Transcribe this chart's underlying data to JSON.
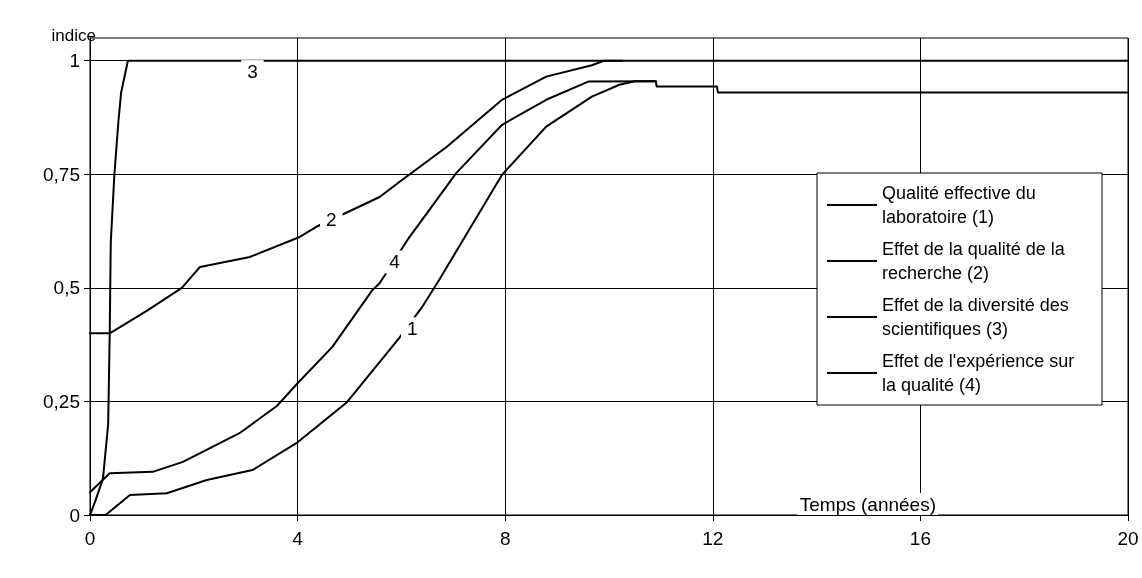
{
  "chart_data": {
    "type": "line",
    "xlabel": "Temps (années)",
    "ylabel": "indice",
    "xlim": [
      0,
      20
    ],
    "xticks": [
      0,
      4,
      8,
      12,
      16,
      20
    ],
    "ylim": [
      0,
      1.05
    ],
    "yticks": [
      0,
      {
        "value": 0.25,
        "label": "0,25"
      },
      {
        "value": 0.5,
        "label": "0,5"
      },
      {
        "value": 0.75,
        "label": "0,75"
      },
      1
    ],
    "grid": true,
    "legend": "right",
    "marker": "none",
    "line_style": "solid",
    "series": [
      {
        "name": "Qualité effective du laboratoire (1)",
        "color": "#000000",
        "x": [
          0,
          0.3,
          0.77,
          1.48,
          2.25,
          3.13,
          4,
          4.94,
          5.96,
          6.4,
          6.73,
          7.94,
          8.79,
          9.67,
          10.2,
          10.5,
          10.9,
          10.92,
          12.08,
          12.1,
          20
        ],
        "values": [
          0,
          0,
          0.044,
          0.048,
          0.077,
          0.099,
          0.16,
          0.247,
          0.39,
          0.458,
          0.518,
          0.749,
          0.855,
          0.921,
          0.947,
          0.955,
          0.955,
          0.943,
          0.943,
          0.93,
          0.93
        ]
      },
      {
        "name": "Effet de la qualité de la recherche (2)",
        "color": "#000000",
        "x": [
          0,
          0.38,
          1.1,
          1.77,
          2.12,
          3.08,
          4.04,
          4.37,
          5.06,
          5.58,
          5.96,
          6.87,
          7.94,
          8.79,
          9.67,
          9.9,
          10.25
        ],
        "values": [
          0.4,
          0.4,
          0.45,
          0.5,
          0.546,
          0.568,
          0.612,
          0.635,
          0.672,
          0.7,
          0.733,
          0.81,
          0.914,
          0.965,
          0.99,
          1,
          1
        ]
      },
      {
        "name": "Effet de la diversité des scientifiques (3)",
        "color": "#000000",
        "x": [
          0,
          0.1,
          0.25,
          0.35,
          0.38,
          0.4,
          0.47,
          0.55,
          0.6,
          0.73,
          20
        ],
        "values": [
          0,
          0.03,
          0.08,
          0.2,
          0.4,
          0.6,
          0.75,
          0.87,
          0.93,
          1,
          1
        ]
      },
      {
        "name": "Effet de l'expérience sur la qualité (4)",
        "color": "#000000",
        "x": [
          0,
          0.38,
          1.21,
          1.79,
          2.88,
          3.6,
          4,
          4.67,
          5.44,
          5.58,
          6.12,
          7.06,
          7.94,
          8.79,
          9.6,
          10.9
        ],
        "values": [
          0.05,
          0.092,
          0.095,
          0.117,
          0.18,
          0.24,
          0.29,
          0.37,
          0.495,
          0.51,
          0.606,
          0.753,
          0.859,
          0.914,
          0.954,
          0.955
        ]
      }
    ],
    "annotations": [
      {
        "text": "1",
        "x": 6.21,
        "y": 0.41
      },
      {
        "text": "2",
        "x": 4.65,
        "y": 0.65
      },
      {
        "text": "3",
        "x": 3.13,
        "y": 0.976
      },
      {
        "text": "4",
        "x": 5.87,
        "y": 0.557
      }
    ]
  }
}
